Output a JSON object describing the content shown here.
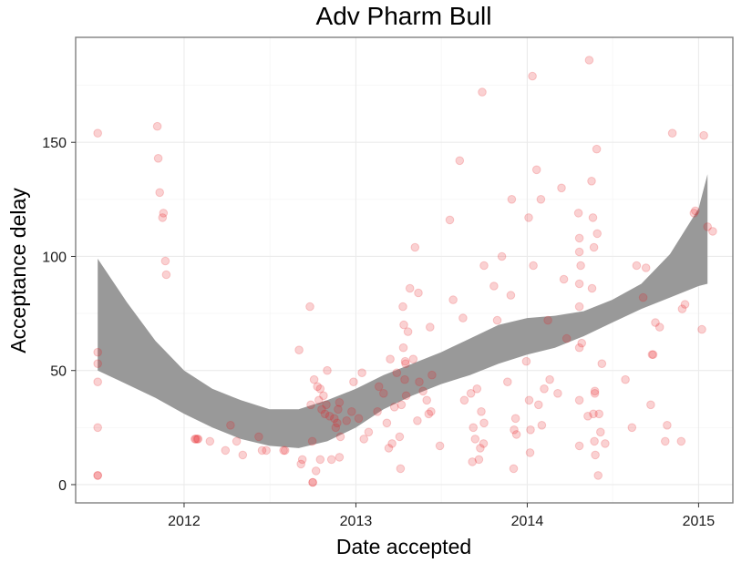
{
  "chart_data": {
    "type": "scatter",
    "title": "Adv Pharm Bull",
    "xlabel": "Date accepted",
    "ylabel": "Acceptance delay",
    "xlim": [
      "2011-05-15",
      "2015-03-15"
    ],
    "ylim": [
      -8,
      196
    ],
    "x_ticks": [
      "2012-01-01",
      "2013-01-01",
      "2014-01-01",
      "2015-01-01"
    ],
    "x_tick_labels": [
      "2012",
      "2013",
      "2014",
      "2015"
    ],
    "y_ticks": [
      0,
      50,
      100,
      150
    ],
    "y_tick_labels": [
      "0",
      "50",
      "100",
      "150"
    ],
    "grid": true,
    "legend": "none",
    "colors": {
      "points": "#e41a1c",
      "ribbon": "#999999",
      "panel_border": "#7f7f7f",
      "grid_major": "#ebebeb",
      "grid_minor": "#f5f5f5"
    },
    "series": [
      {
        "type": "points",
        "points": [
          [
            "2011-07-01",
            154
          ],
          [
            "2011-07-01",
            58
          ],
          [
            "2011-07-01",
            53
          ],
          [
            "2011-07-01",
            45
          ],
          [
            "2011-07-01",
            25
          ],
          [
            "2011-07-01",
            4
          ],
          [
            "2011-07-01",
            4
          ],
          [
            "2011-11-05",
            157
          ],
          [
            "2011-11-07",
            143
          ],
          [
            "2011-11-10",
            128
          ],
          [
            "2011-11-16",
            117
          ],
          [
            "2011-11-18",
            119
          ],
          [
            "2011-11-22",
            98
          ],
          [
            "2011-11-24",
            92
          ],
          [
            "2012-01-24",
            20
          ],
          [
            "2012-01-26",
            20
          ],
          [
            "2012-01-29",
            20
          ],
          [
            "2012-01-31",
            20
          ],
          [
            "2012-02-25",
            19
          ],
          [
            "2012-03-29",
            15
          ],
          [
            "2012-04-09",
            26
          ],
          [
            "2012-04-22",
            19
          ],
          [
            "2012-05-05",
            13
          ],
          [
            "2012-06-08",
            21
          ],
          [
            "2012-06-15",
            15
          ],
          [
            "2012-06-24",
            15
          ],
          [
            "2012-07-31",
            15
          ],
          [
            "2012-08-03",
            15
          ],
          [
            "2012-09-02",
            59
          ],
          [
            "2012-09-06",
            9
          ],
          [
            "2012-09-09",
            11
          ],
          [
            "2012-09-25",
            78
          ],
          [
            "2012-09-27",
            35
          ],
          [
            "2012-09-30",
            19
          ],
          [
            "2012-10-01",
            1
          ],
          [
            "2012-10-01",
            1
          ],
          [
            "2012-10-04",
            46
          ],
          [
            "2012-10-08",
            6
          ],
          [
            "2012-10-11",
            43
          ],
          [
            "2012-10-14",
            37
          ],
          [
            "2012-10-17",
            42
          ],
          [
            "2012-10-17",
            11
          ],
          [
            "2012-10-20",
            33
          ],
          [
            "2012-10-24",
            39
          ],
          [
            "2012-10-27",
            31
          ],
          [
            "2012-10-30",
            35
          ],
          [
            "2012-11-01",
            50
          ],
          [
            "2012-11-06",
            30
          ],
          [
            "2012-11-10",
            11
          ],
          [
            "2012-11-16",
            29
          ],
          [
            "2012-11-19",
            25
          ],
          [
            "2012-11-22",
            27
          ],
          [
            "2012-11-24",
            33
          ],
          [
            "2012-11-27",
            12
          ],
          [
            "2012-11-27",
            36
          ],
          [
            "2012-11-29",
            21
          ],
          [
            "2012-12-12",
            28
          ],
          [
            "2012-12-23",
            32
          ],
          [
            "2012-12-27",
            45
          ],
          [
            "2013-01-07",
            29
          ],
          [
            "2013-01-14",
            49
          ],
          [
            "2013-01-18",
            20
          ],
          [
            "2013-01-28",
            23
          ],
          [
            "2013-02-16",
            32
          ],
          [
            "2013-02-19",
            43
          ],
          [
            "2013-03-01",
            40
          ],
          [
            "2013-03-08",
            27
          ],
          [
            "2013-03-12",
            16
          ],
          [
            "2013-03-15",
            55
          ],
          [
            "2013-03-19",
            18
          ],
          [
            "2013-03-24",
            34
          ],
          [
            "2013-03-29",
            49
          ],
          [
            "2013-04-04",
            21
          ],
          [
            "2013-04-06",
            7
          ],
          [
            "2013-04-08",
            35
          ],
          [
            "2013-04-11",
            78
          ],
          [
            "2013-04-12",
            60
          ],
          [
            "2013-04-13",
            70
          ],
          [
            "2013-04-15",
            46
          ],
          [
            "2013-04-16",
            54
          ],
          [
            "2013-04-17",
            53
          ],
          [
            "2013-04-18",
            39
          ],
          [
            "2013-04-22",
            67
          ],
          [
            "2013-04-26",
            86
          ],
          [
            "2013-05-03",
            55
          ],
          [
            "2013-05-07",
            104
          ],
          [
            "2013-05-12",
            28
          ],
          [
            "2013-05-14",
            84
          ],
          [
            "2013-05-16",
            45
          ],
          [
            "2013-05-24",
            41
          ],
          [
            "2013-06-01",
            37
          ],
          [
            "2013-06-05",
            31
          ],
          [
            "2013-06-08",
            69
          ],
          [
            "2013-06-10",
            32
          ],
          [
            "2013-06-12",
            48
          ],
          [
            "2013-06-29",
            17
          ],
          [
            "2013-07-20",
            116
          ],
          [
            "2013-07-27",
            81
          ],
          [
            "2013-08-10",
            142
          ],
          [
            "2013-08-17",
            73
          ],
          [
            "2013-08-20",
            37
          ],
          [
            "2013-09-03",
            40
          ],
          [
            "2013-09-06",
            10
          ],
          [
            "2013-09-08",
            25
          ],
          [
            "2013-09-12",
            20
          ],
          [
            "2013-09-16",
            42
          ],
          [
            "2013-09-20",
            11
          ],
          [
            "2013-09-23",
            16
          ],
          [
            "2013-09-25",
            32
          ],
          [
            "2013-09-27",
            172
          ],
          [
            "2013-09-30",
            18
          ],
          [
            "2013-10-01",
            96
          ],
          [
            "2013-10-01",
            27
          ],
          [
            "2013-10-22",
            87
          ],
          [
            "2013-10-29",
            72
          ],
          [
            "2013-11-08",
            100
          ],
          [
            "2013-11-20",
            45
          ],
          [
            "2013-11-27",
            83
          ],
          [
            "2013-11-29",
            125
          ],
          [
            "2013-12-03",
            7
          ],
          [
            "2013-12-04",
            24
          ],
          [
            "2013-12-07",
            29
          ],
          [
            "2013-12-09",
            22
          ],
          [
            "2013-12-30",
            54
          ],
          [
            "2014-01-04",
            117
          ],
          [
            "2014-01-05",
            37
          ],
          [
            "2014-01-07",
            14
          ],
          [
            "2014-01-08",
            24
          ],
          [
            "2014-01-12",
            179
          ],
          [
            "2014-01-14",
            96
          ],
          [
            "2014-01-21",
            138
          ],
          [
            "2014-01-25",
            35
          ],
          [
            "2014-01-30",
            125
          ],
          [
            "2014-02-01",
            26
          ],
          [
            "2014-02-06",
            42
          ],
          [
            "2014-02-14",
            72
          ],
          [
            "2014-02-18",
            46
          ],
          [
            "2014-03-07",
            40
          ],
          [
            "2014-03-15",
            130
          ],
          [
            "2014-03-20",
            90
          ],
          [
            "2014-03-26",
            64
          ],
          [
            "2014-04-20",
            119
          ],
          [
            "2014-04-22",
            108
          ],
          [
            "2014-04-22",
            102
          ],
          [
            "2014-04-22",
            88
          ],
          [
            "2014-04-22",
            78
          ],
          [
            "2014-04-22",
            60
          ],
          [
            "2014-04-22",
            37
          ],
          [
            "2014-04-22",
            17
          ],
          [
            "2014-04-25",
            96
          ],
          [
            "2014-04-27",
            62
          ],
          [
            "2014-05-10",
            30
          ],
          [
            "2014-05-18",
            133
          ],
          [
            "2014-05-19",
            86
          ],
          [
            "2014-05-21",
            117
          ],
          [
            "2014-05-22",
            31
          ],
          [
            "2014-05-23",
            104
          ],
          [
            "2014-05-24",
            19
          ],
          [
            "2014-05-25",
            40
          ],
          [
            "2014-05-25",
            41
          ],
          [
            "2014-05-26",
            13
          ],
          [
            "2014-05-29",
            147
          ],
          [
            "2014-05-30",
            110
          ],
          [
            "2014-06-01",
            4
          ],
          [
            "2014-06-03",
            31
          ],
          [
            "2014-06-06",
            23
          ],
          [
            "2014-06-09",
            53
          ],
          [
            "2014-06-16",
            18
          ],
          [
            "2014-07-29",
            46
          ],
          [
            "2014-08-12",
            25
          ],
          [
            "2014-08-22",
            96
          ],
          [
            "2014-09-05",
            82
          ],
          [
            "2014-09-11",
            95
          ],
          [
            "2014-09-21",
            35
          ],
          [
            "2014-09-24",
            57
          ],
          [
            "2014-09-26",
            57
          ],
          [
            "2014-10-01",
            71
          ],
          [
            "2014-10-10",
            69
          ],
          [
            "2014-10-22",
            19
          ],
          [
            "2014-10-26",
            26
          ],
          [
            "2014-11-06",
            154
          ],
          [
            "2014-11-25",
            19
          ],
          [
            "2014-11-27",
            77
          ],
          [
            "2014-12-03",
            79
          ],
          [
            "2014-12-22",
            119
          ],
          [
            "2014-12-25",
            120
          ],
          [
            "2015-01-08",
            68
          ],
          [
            "2015-01-12",
            153
          ],
          [
            "2015-01-20",
            113
          ],
          [
            "2015-01-31",
            111
          ],
          [
            "2014-05-13",
            186
          ]
        ]
      },
      {
        "type": "ribbon",
        "x": [
          "2011-07-01",
          "2011-09-01",
          "2011-11-01",
          "2012-01-01",
          "2012-03-01",
          "2012-05-01",
          "2012-07-01",
          "2012-09-01",
          "2012-11-01",
          "2013-01-01",
          "2013-03-01",
          "2013-05-01",
          "2013-07-01",
          "2013-09-01",
          "2013-11-01",
          "2014-01-01",
          "2014-03-01",
          "2014-05-01",
          "2014-07-01",
          "2014-09-01",
          "2014-11-01",
          "2015-01-01",
          "2015-01-20"
        ],
        "upper": [
          99,
          80,
          63,
          50,
          42,
          37,
          33,
          33,
          37,
          42,
          48,
          53,
          58,
          64,
          70,
          73,
          74,
          76,
          81,
          88,
          101,
          121,
          136
        ],
        "lower": [
          50,
          44,
          38,
          31,
          25,
          20,
          17,
          16,
          19,
          25,
          33,
          39,
          44,
          48,
          53,
          57,
          60,
          65,
          71,
          77,
          82,
          87,
          88
        ]
      }
    ]
  }
}
